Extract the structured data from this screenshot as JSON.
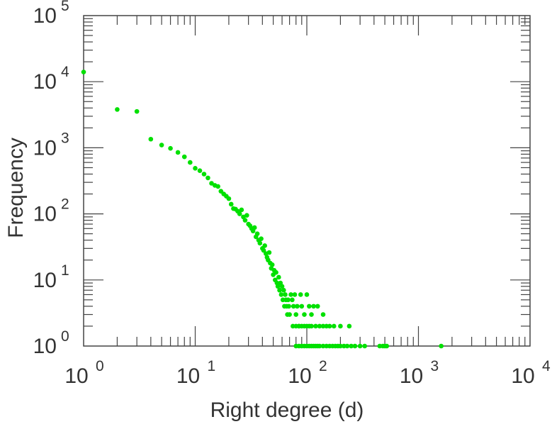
{
  "chart_data": {
    "type": "scatter",
    "title": "",
    "xlabel": "Right degree (d)",
    "ylabel": "Frequency",
    "xscale": "log",
    "yscale": "log",
    "xlim": [
      1,
      10000
    ],
    "ylim": [
      1,
      100000
    ],
    "x_ticks": [
      {
        "base": "10",
        "exp": "0"
      },
      {
        "base": "10",
        "exp": "1"
      },
      {
        "base": "10",
        "exp": "2"
      },
      {
        "base": "10",
        "exp": "3"
      },
      {
        "base": "10",
        "exp": "4"
      }
    ],
    "y_ticks": [
      {
        "base": "10",
        "exp": "0"
      },
      {
        "base": "10",
        "exp": "1"
      },
      {
        "base": "10",
        "exp": "2"
      },
      {
        "base": "10",
        "exp": "3"
      },
      {
        "base": "10",
        "exp": "4"
      },
      {
        "base": "10",
        "exp": "5"
      }
    ],
    "grid": false,
    "marker_color": "#00e000",
    "points": [
      [
        1,
        14000
      ],
      [
        2,
        3800
      ],
      [
        3,
        3550
      ],
      [
        4,
        1350
      ],
      [
        5,
        1100
      ],
      [
        6,
        980
      ],
      [
        7,
        850
      ],
      [
        8,
        730
      ],
      [
        9,
        600
      ],
      [
        10,
        490
      ],
      [
        11,
        450
      ],
      [
        12,
        400
      ],
      [
        13,
        350
      ],
      [
        14,
        290
      ],
      [
        15,
        270
      ],
      [
        16,
        260
      ],
      [
        17,
        220
      ],
      [
        18,
        200
      ],
      [
        19,
        185
      ],
      [
        20,
        170
      ],
      [
        21,
        140
      ],
      [
        22,
        120
      ],
      [
        23,
        118
      ],
      [
        24,
        110
      ],
      [
        25,
        100
      ],
      [
        26,
        115
      ],
      [
        27,
        90
      ],
      [
        28,
        80
      ],
      [
        29,
        95
      ],
      [
        30,
        70
      ],
      [
        31,
        66
      ],
      [
        32,
        60
      ],
      [
        33,
        55
      ],
      [
        34,
        62
      ],
      [
        35,
        45
      ],
      [
        36,
        50
      ],
      [
        37,
        40
      ],
      [
        38,
        36
      ],
      [
        39,
        42
      ],
      [
        40,
        30
      ],
      [
        41,
        28
      ],
      [
        42,
        33
      ],
      [
        43,
        25
      ],
      [
        44,
        22
      ],
      [
        45,
        20
      ],
      [
        46,
        26
      ],
      [
        47,
        18
      ],
      [
        48,
        15
      ],
      [
        49,
        17
      ],
      [
        50,
        12
      ],
      [
        51,
        14
      ],
      [
        52,
        10
      ],
      [
        53,
        13
      ],
      [
        54,
        9
      ],
      [
        55,
        8
      ],
      [
        56,
        11
      ],
      [
        57,
        7
      ],
      [
        58,
        9
      ],
      [
        59,
        6
      ],
      [
        60,
        8
      ],
      [
        61,
        5
      ],
      [
        62,
        7
      ],
      [
        63,
        4
      ],
      [
        64,
        6
      ],
      [
        65,
        5
      ],
      [
        66,
        4
      ],
      [
        67,
        3
      ],
      [
        68,
        5
      ],
      [
        69,
        4
      ],
      [
        70,
        3
      ],
      [
        72,
        6
      ],
      [
        74,
        5
      ],
      [
        76,
        4
      ],
      [
        78,
        6
      ],
      [
        80,
        3
      ],
      [
        82,
        4
      ],
      [
        85,
        2
      ],
      [
        88,
        6
      ],
      [
        90,
        4
      ],
      [
        95,
        3
      ],
      [
        100,
        6
      ],
      [
        105,
        4
      ],
      [
        110,
        3
      ],
      [
        115,
        4
      ],
      [
        125,
        4
      ],
      [
        140,
        3
      ],
      [
        75,
        2
      ],
      [
        80,
        2
      ],
      [
        85,
        2
      ],
      [
        90,
        2
      ],
      [
        95,
        2
      ],
      [
        100,
        2
      ],
      [
        105,
        2
      ],
      [
        110,
        2
      ],
      [
        120,
        2
      ],
      [
        130,
        2
      ],
      [
        140,
        2
      ],
      [
        150,
        2
      ],
      [
        160,
        2
      ],
      [
        175,
        2
      ],
      [
        200,
        2
      ],
      [
        240,
        2
      ],
      [
        80,
        1
      ],
      [
        85,
        1
      ],
      [
        90,
        1
      ],
      [
        95,
        1
      ],
      [
        100,
        1
      ],
      [
        105,
        1
      ],
      [
        110,
        1
      ],
      [
        115,
        1
      ],
      [
        120,
        1
      ],
      [
        125,
        1
      ],
      [
        130,
        1
      ],
      [
        140,
        1
      ],
      [
        150,
        1
      ],
      [
        160,
        1
      ],
      [
        170,
        1
      ],
      [
        180,
        1
      ],
      [
        190,
        1
      ],
      [
        200,
        1
      ],
      [
        215,
        1
      ],
      [
        230,
        1
      ],
      [
        250,
        1
      ],
      [
        270,
        1
      ],
      [
        300,
        1
      ],
      [
        330,
        1
      ],
      [
        450,
        1
      ],
      [
        480,
        1
      ],
      [
        500,
        1
      ],
      [
        520,
        1
      ],
      [
        1600,
        1
      ]
    ]
  }
}
